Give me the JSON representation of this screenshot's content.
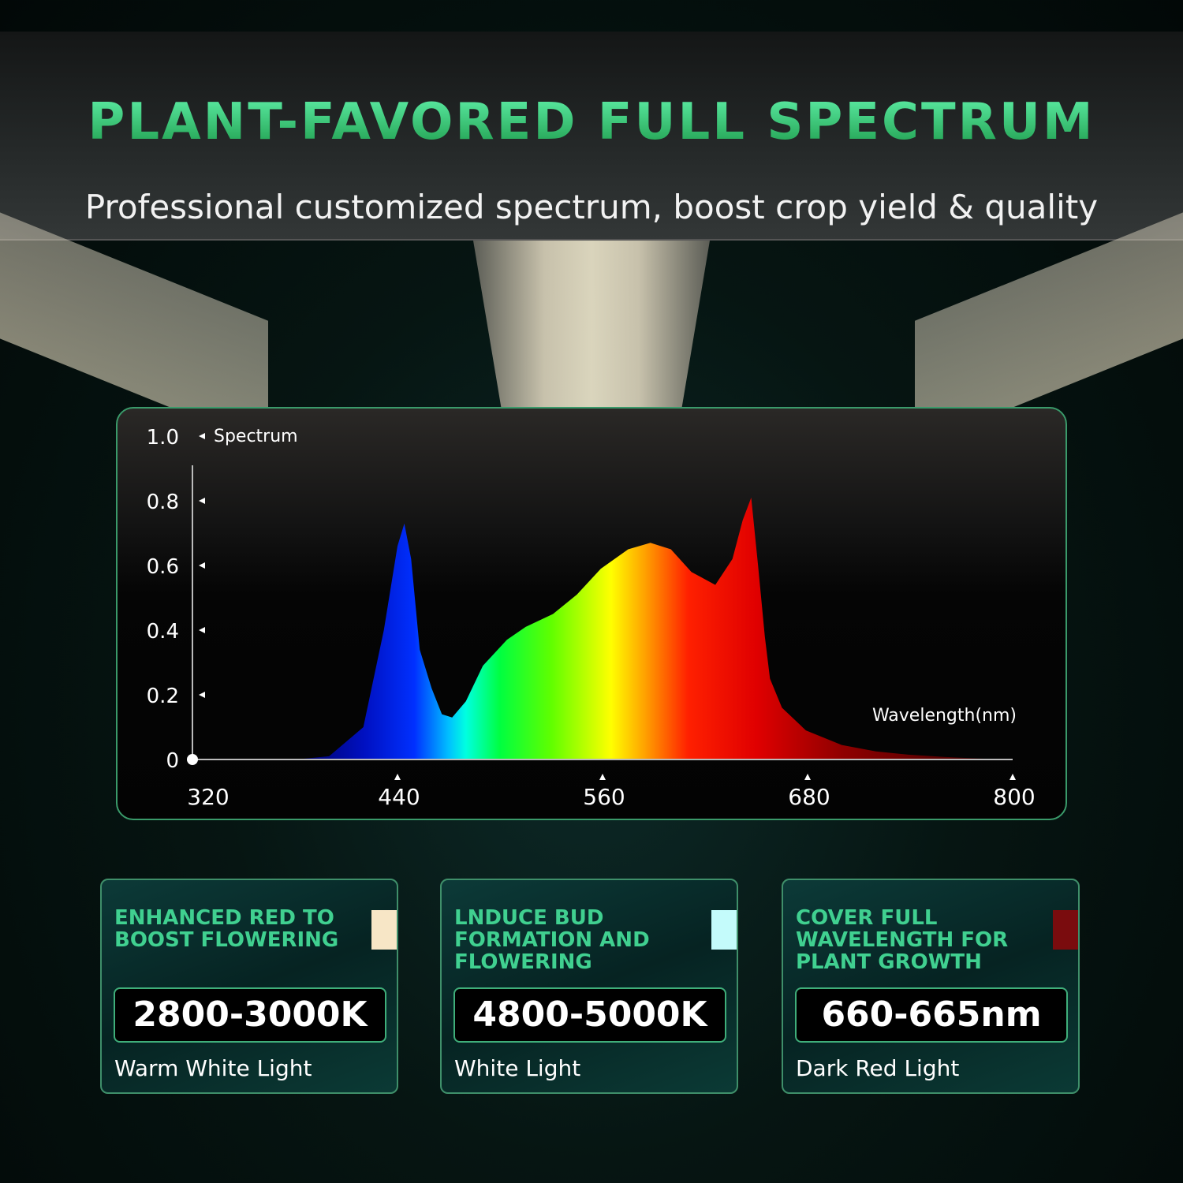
{
  "header": {
    "title": "PLANT-FAVORED FULL SPECTRUM",
    "subtitle": "Professional customized spectrum, boost crop yield & quality"
  },
  "chart_data": {
    "type": "area",
    "ylabel": "Spectrum",
    "xlabel": "Wavelength(nm)",
    "xlim": [
      320,
      800
    ],
    "ylim": [
      0,
      1.0
    ],
    "xticks": [
      "320",
      "440",
      "560",
      "680",
      "800"
    ],
    "yticks": [
      "0",
      "0.2",
      "0.4",
      "0.6",
      "0.8",
      "1.0"
    ],
    "grid": false,
    "x": [
      380,
      400,
      420,
      432,
      440,
      444,
      448,
      453,
      460,
      466,
      472,
      480,
      490,
      504,
      515,
      531,
      545,
      559,
      575,
      588,
      600,
      612,
      626,
      636,
      642,
      647,
      651,
      655,
      658,
      665,
      679,
      700,
      720,
      739,
      760,
      780,
      800
    ],
    "y": [
      0,
      0.01,
      0.1,
      0.4,
      0.66,
      0.73,
      0.62,
      0.34,
      0.22,
      0.14,
      0.13,
      0.18,
      0.29,
      0.37,
      0.41,
      0.45,
      0.51,
      0.59,
      0.65,
      0.67,
      0.65,
      0.58,
      0.54,
      0.62,
      0.74,
      0.81,
      0.6,
      0.38,
      0.25,
      0.16,
      0.09,
      0.045,
      0.025,
      0.015,
      0.008,
      0.003,
      0
    ]
  },
  "cards": [
    {
      "heading": "ENHANCED RED TO BOOST FLOWERING",
      "value": "2800-3000K",
      "label": "Warm White Light",
      "swatch": "#f7e6c6"
    },
    {
      "heading": "LNDUCE BUD FORMATION AND FLOWERING",
      "value": "4800-5000K",
      "label": "White Light",
      "swatch": "#c4fbfb"
    },
    {
      "heading": "COVER FULL WAVELENGTH FOR PLANT GROWTH",
      "value": "660-665nm",
      "label": "Dark Red Light",
      "swatch": "#7a0c0e"
    }
  ],
  "colors": {
    "accent": "#3fd68a",
    "border": "#3a9a6a"
  }
}
